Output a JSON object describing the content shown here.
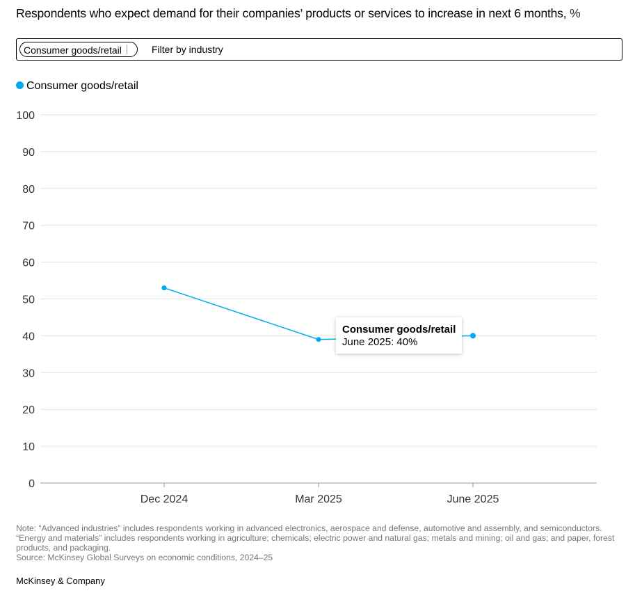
{
  "header": {
    "title": "Respondents who expect demand for their companies’ products or services to increase in next 6 months,",
    "unit": "%"
  },
  "filter": {
    "selected_chip": "Consumer goods/retail",
    "placeholder": "Filter by industry"
  },
  "legend": {
    "label": "Consumer goods/retail",
    "color": "#00a9f4"
  },
  "tooltip": {
    "title": "Consumer goods/retail",
    "value": "June 2025: 40%"
  },
  "chart_data": {
    "type": "line",
    "title": "Respondents who expect demand for their companies’ products or services to increase in next 6 months, %",
    "categories": [
      "Dec 2024",
      "Mar 2025",
      "June 2025"
    ],
    "series": [
      {
        "name": "Consumer goods/retail",
        "values": [
          53,
          39,
          40
        ],
        "color": "#00a9f4"
      }
    ],
    "yticks": [
      0,
      10,
      20,
      30,
      40,
      50,
      60,
      70,
      80,
      90,
      100
    ],
    "ylim": [
      0,
      100
    ],
    "grid": true,
    "legend_position": "top-left",
    "highlighted_point": "June 2025"
  },
  "footer": {
    "note": "Note: “Advanced industries” includes respondents working in advanced electronics, aerospace and defense, automotive and assembly, and semiconductors. “Energy and materials” includes respondents working in agriculture; chemicals; electric power and natural gas; metals and mining; oil and gas; and paper, forest products, and packaging.",
    "source": "Source: McKinsey Global Surveys on economic conditions, 2024–25",
    "brand": "McKinsey & Company"
  }
}
